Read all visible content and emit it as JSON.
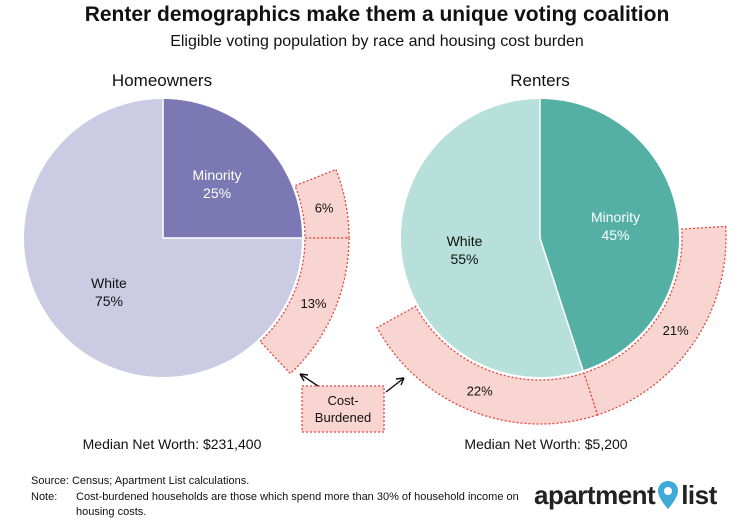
{
  "title": "Renter demographics make them a unique voting coalition",
  "subtitle": "Eligible voting population by race and housing cost burden",
  "chart_data": [
    {
      "type": "pie",
      "title": "Homeowners",
      "slices": [
        {
          "name": "Minority",
          "value": 25,
          "label": "25%",
          "color": "#7b78b4"
        },
        {
          "name": "White",
          "value": 75,
          "label": "75%",
          "color": "#cccbe4"
        }
      ],
      "cost_burdened": [
        {
          "group": "Minority",
          "value": 6,
          "label": "6%"
        },
        {
          "group": "White",
          "value": 13,
          "label": "13%"
        }
      ],
      "median_net_worth": "Median Net Worth: $231,400"
    },
    {
      "type": "pie",
      "title": "Renters",
      "slices": [
        {
          "name": "Minority",
          "value": 45,
          "label": "45%",
          "color": "#54b0a5"
        },
        {
          "name": "White",
          "value": 55,
          "label": "55%",
          "color": "#b7e0da"
        }
      ],
      "cost_burdened": [
        {
          "group": "Minority",
          "value": 21,
          "label": "21%"
        },
        {
          "group": "White",
          "value": 22,
          "label": "22%"
        }
      ],
      "median_net_worth": "Median Net Worth: $5,200"
    }
  ],
  "annotation": {
    "label_line1": "Cost-",
    "label_line2": "Burdened"
  },
  "colors": {
    "burden_fill": "#f9d5d2",
    "burden_stroke": "#e0463c"
  },
  "source": "Source: Census; Apartment List calculations.",
  "note_label": "Note:",
  "note_text": "Cost-burdened households are those which spend more than 30% of household income on housing costs.",
  "logo": {
    "word1": "apartment",
    "word2": "list",
    "icon": "location-pin-icon"
  }
}
